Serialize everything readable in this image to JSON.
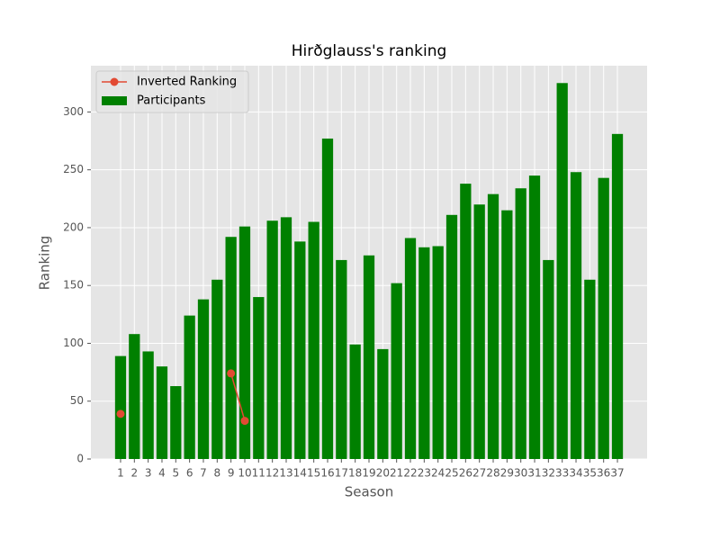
{
  "chart_data": {
    "type": "bar",
    "title": "Hirðglauss's ranking",
    "x_label": "Season",
    "y_label": "Ranking",
    "x": [
      1,
      2,
      3,
      4,
      5,
      6,
      7,
      8,
      9,
      10,
      11,
      12,
      13,
      14,
      15,
      16,
      17,
      18,
      19,
      20,
      21,
      22,
      23,
      24,
      25,
      26,
      27,
      28,
      29,
      30,
      31,
      32,
      33,
      34,
      35,
      36,
      37
    ],
    "xticks": [
      1,
      2,
      3,
      4,
      5,
      6,
      7,
      8,
      9,
      10,
      11,
      12,
      13,
      14,
      15,
      16,
      17,
      18,
      19,
      20,
      21,
      22,
      23,
      24,
      25,
      26,
      27,
      28,
      29,
      30,
      31,
      32,
      33,
      34,
      35,
      36,
      37
    ],
    "xlim": [
      -1.15,
      39.15
    ],
    "ylim": [
      0,
      340
    ],
    "yticks": [
      0,
      50,
      100,
      150,
      200,
      250,
      300
    ],
    "grid": true,
    "legend": "upper left",
    "series": [
      {
        "name": "Inverted Ranking",
        "type": "line",
        "color": "#E24A33",
        "values": [
          39,
          null,
          null,
          null,
          null,
          null,
          null,
          null,
          74,
          33,
          null,
          null,
          null,
          null,
          null,
          null,
          null,
          null,
          null,
          null,
          null,
          null,
          null,
          null,
          null,
          null,
          null,
          null,
          null,
          null,
          null,
          null,
          null,
          null,
          null,
          null,
          null
        ]
      },
      {
        "name": "Participants",
        "type": "bar",
        "color": "#008000",
        "values": [
          89,
          108,
          93,
          80,
          63,
          124,
          138,
          155,
          192,
          201,
          140,
          206,
          209,
          188,
          205,
          277,
          172,
          99,
          176,
          95,
          152,
          191,
          183,
          184,
          211,
          238,
          220,
          229,
          215,
          234,
          245,
          172,
          325,
          248,
          155,
          243,
          281
        ]
      }
    ]
  }
}
